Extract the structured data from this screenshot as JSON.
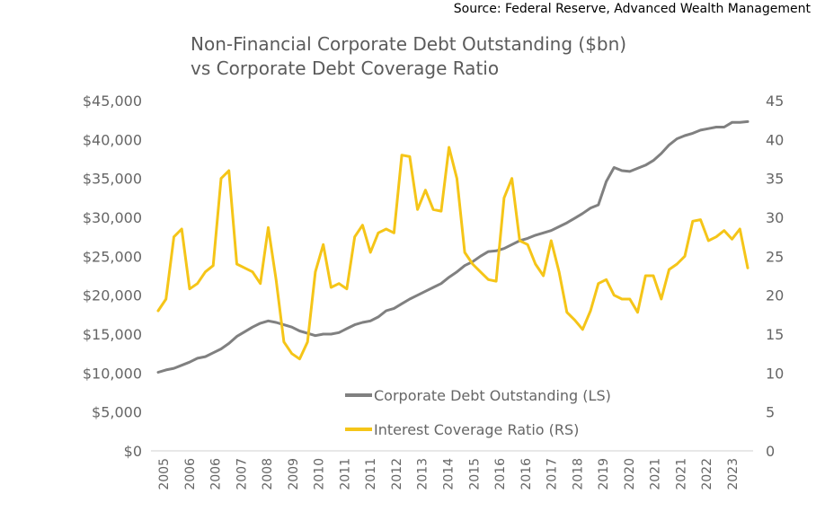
{
  "source": "Source: Federal Reserve, Advanced Wealth Management",
  "chart_data": {
    "type": "line",
    "title_line1": "Non-Financial Corporate Debt Outstanding ($bn)",
    "title_line2": "vs Corporate Debt Coverage Ratio",
    "left_axis": {
      "ylim": [
        0,
        45000
      ],
      "tick_labels": [
        "$0",
        "$5,000",
        "$10,000",
        "$15,000",
        "$20,000",
        "$25,000",
        "$30,000",
        "$35,000",
        "$40,000",
        "$45,000"
      ],
      "tick_values": [
        0,
        5000,
        10000,
        15000,
        20000,
        25000,
        30000,
        35000,
        40000,
        45000
      ]
    },
    "right_axis": {
      "ylim": [
        0,
        45
      ],
      "tick_labels": [
        "0",
        "5",
        "10",
        "15",
        "20",
        "25",
        "30",
        "35",
        "40",
        "45"
      ],
      "tick_values": [
        0,
        5,
        10,
        15,
        20,
        25,
        30,
        35,
        40,
        45
      ]
    },
    "x_tick_labels": [
      "2005",
      "2006",
      "2006",
      "2007",
      "2008",
      "2009",
      "2010",
      "2011",
      "2011",
      "2012",
      "2013",
      "2014",
      "2015",
      "2016",
      "2016",
      "2017",
      "2018",
      "2019",
      "2020",
      "2021",
      "2021",
      "2022",
      "2023"
    ],
    "x_range": [
      2005,
      2023.75
    ],
    "series": [
      {
        "name": "Corporate Debt Outstanding (LS)",
        "axis": "left",
        "color": "#808080",
        "x": [
          2005,
          2005.25,
          2005.5,
          2005.75,
          2006,
          2006.25,
          2006.5,
          2006.75,
          2007,
          2007.25,
          2007.5,
          2007.75,
          2008,
          2008.25,
          2008.5,
          2008.75,
          2009,
          2009.25,
          2009.5,
          2009.75,
          2010,
          2010.25,
          2010.5,
          2010.75,
          2011,
          2011.25,
          2011.5,
          2011.75,
          2012,
          2012.25,
          2012.5,
          2012.75,
          2013,
          2013.25,
          2013.5,
          2013.75,
          2014,
          2014.25,
          2014.5,
          2014.75,
          2015,
          2015.25,
          2015.5,
          2015.75,
          2016,
          2016.25,
          2016.5,
          2016.75,
          2017,
          2017.25,
          2017.5,
          2017.75,
          2018,
          2018.25,
          2018.5,
          2018.75,
          2019,
          2019.25,
          2019.5,
          2019.75,
          2020,
          2020.25,
          2020.5,
          2020.75,
          2021,
          2021.25,
          2021.5,
          2021.75,
          2022,
          2022.25,
          2022.5,
          2022.75,
          2023,
          2023.25,
          2023.5,
          2023.75
        ],
        "values": [
          10100,
          10400,
          10600,
          11000,
          11400,
          11900,
          12100,
          12600,
          13100,
          13800,
          14700,
          15300,
          15900,
          16400,
          16700,
          16500,
          16200,
          15900,
          15400,
          15100,
          14800,
          15000,
          15000,
          15200,
          15700,
          16200,
          16500,
          16700,
          17200,
          18000,
          18300,
          18900,
          19500,
          20000,
          20500,
          21000,
          21500,
          22300,
          23000,
          23800,
          24300,
          25000,
          25600,
          25700,
          26000,
          26500,
          27000,
          27300,
          27700,
          28000,
          28300,
          28800,
          29300,
          29900,
          30500,
          31200,
          31600,
          34600,
          36400,
          36000,
          35900,
          36300,
          36700,
          37300,
          38200,
          39300,
          40100,
          40500,
          40800,
          41200,
          41400,
          41600,
          41600,
          42200,
          42200,
          42300
        ]
      },
      {
        "name": "Interest Coverage Ratio (RS)",
        "axis": "right",
        "color": "#f5c518",
        "x": [
          2005,
          2005.25,
          2005.5,
          2005.75,
          2006,
          2006.25,
          2006.5,
          2006.75,
          2007,
          2007.25,
          2007.5,
          2007.75,
          2008,
          2008.25,
          2008.5,
          2008.75,
          2009,
          2009.25,
          2009.5,
          2009.75,
          2010,
          2010.25,
          2010.5,
          2010.75,
          2011,
          2011.25,
          2011.5,
          2011.75,
          2012,
          2012.25,
          2012.5,
          2012.75,
          2013,
          2013.25,
          2013.5,
          2013.75,
          2014,
          2014.25,
          2014.5,
          2014.75,
          2015,
          2015.25,
          2015.5,
          2015.75,
          2016,
          2016.25,
          2016.5,
          2016.75,
          2017,
          2017.25,
          2017.5,
          2017.75,
          2018,
          2018.25,
          2018.5,
          2018.75,
          2019,
          2019.25,
          2019.5,
          2019.75,
          2020,
          2020.25,
          2020.5,
          2020.75,
          2021,
          2021.25,
          2021.5,
          2021.75,
          2022,
          2022.25,
          2022.5,
          2022.75,
          2023,
          2023.25,
          2023.5,
          2023.75
        ],
        "values": [
          18,
          19.5,
          27.5,
          28.5,
          20.8,
          21.5,
          23,
          23.8,
          35,
          36,
          24,
          23.5,
          23,
          21.5,
          28.7,
          22,
          14,
          12.5,
          11.8,
          14,
          23,
          26.5,
          21,
          21.5,
          20.8,
          27.5,
          29,
          25.5,
          28,
          28.5,
          28,
          38,
          37.8,
          31,
          33.5,
          31,
          30.8,
          39,
          35,
          25.5,
          24,
          23,
          22,
          21.8,
          32.5,
          35,
          27,
          26.5,
          24,
          22.5,
          27,
          23,
          17.8,
          16.8,
          15.6,
          18,
          21.5,
          22,
          20,
          19.5,
          19.5,
          17.8,
          22.5,
          22.5,
          19.5,
          23.3,
          24,
          25,
          29.5,
          29.7,
          27,
          27.5,
          28.3,
          27.2,
          28.5,
          23.5
        ]
      }
    ]
  }
}
